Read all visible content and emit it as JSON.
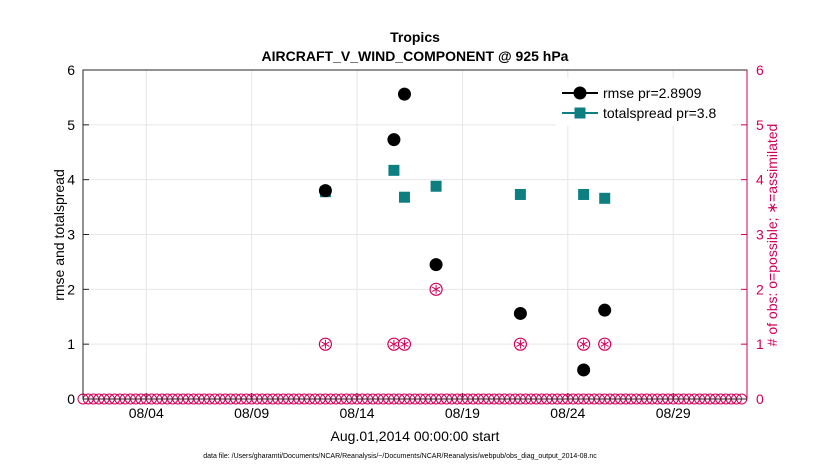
{
  "chart_data": {
    "type": "scatter",
    "title": "Tropics",
    "subtitle": "AIRCRAFT_V_WIND_COMPONENT @ 925 hPa",
    "xlabel": "Aug.01,2014 00:00:00 start",
    "ylabel": "rmse and totalspread",
    "ylabel_right": "# of obs: o=possible; ∗=assimilated",
    "footnote": "data file: /Users/gharamti/Documents/NCAR/Reanalysis/~/Documents/NCAR/Reanalysis/webpub/obs_diag_output_2014-08.nc",
    "xlim": [
      0,
      31.5
    ],
    "ylim": [
      0,
      6
    ],
    "ylim_right": [
      0,
      6
    ],
    "x_ticks": [
      3,
      8,
      13,
      18,
      23,
      28
    ],
    "x_tick_labels": [
      "08/04",
      "08/09",
      "08/14",
      "08/19",
      "08/24",
      "08/29"
    ],
    "y_ticks": [
      0,
      1,
      2,
      3,
      4,
      5,
      6
    ],
    "y_tick_labels": [
      "0",
      "1",
      "2",
      "3",
      "4",
      "5",
      "6"
    ],
    "y_right_tick_labels": [
      "0",
      "1",
      "2",
      "3",
      "4",
      "5",
      "6"
    ],
    "grid": true,
    "legend_position": "top-right",
    "series": [
      {
        "name": "rmse",
        "legend": "rmse pr=2.8909",
        "color": "#000000",
        "marker": "circle",
        "x": [
          11.5,
          14.75,
          15.25,
          16.75,
          20.75,
          23.75,
          24.75
        ],
        "y": [
          3.8,
          4.73,
          5.56,
          2.45,
          1.56,
          0.53,
          1.62
        ]
      },
      {
        "name": "totalspread",
        "legend": "totalspread pr=3.8",
        "color": "#0d7f80",
        "marker": "square",
        "x": [
          11.5,
          14.75,
          15.25,
          16.75,
          20.75,
          23.75,
          24.75
        ],
        "y": [
          3.78,
          4.17,
          3.68,
          3.88,
          3.73,
          3.73,
          3.66
        ]
      },
      {
        "name": "obs_assimilated",
        "axis": "right",
        "color": "#d1005b",
        "marker": "circle-asterisk",
        "x": [
          11.5,
          14.75,
          15.25,
          16.75,
          20.75,
          23.75,
          24.75
        ],
        "y": [
          1,
          1,
          1,
          2,
          1,
          1,
          1
        ]
      },
      {
        "name": "obs_possible_zero",
        "axis": "right",
        "color": "#d1005b",
        "marker": "circle",
        "x_range": [
          0,
          31.25
        ],
        "x_step": 0.25,
        "y": 0
      }
    ]
  }
}
